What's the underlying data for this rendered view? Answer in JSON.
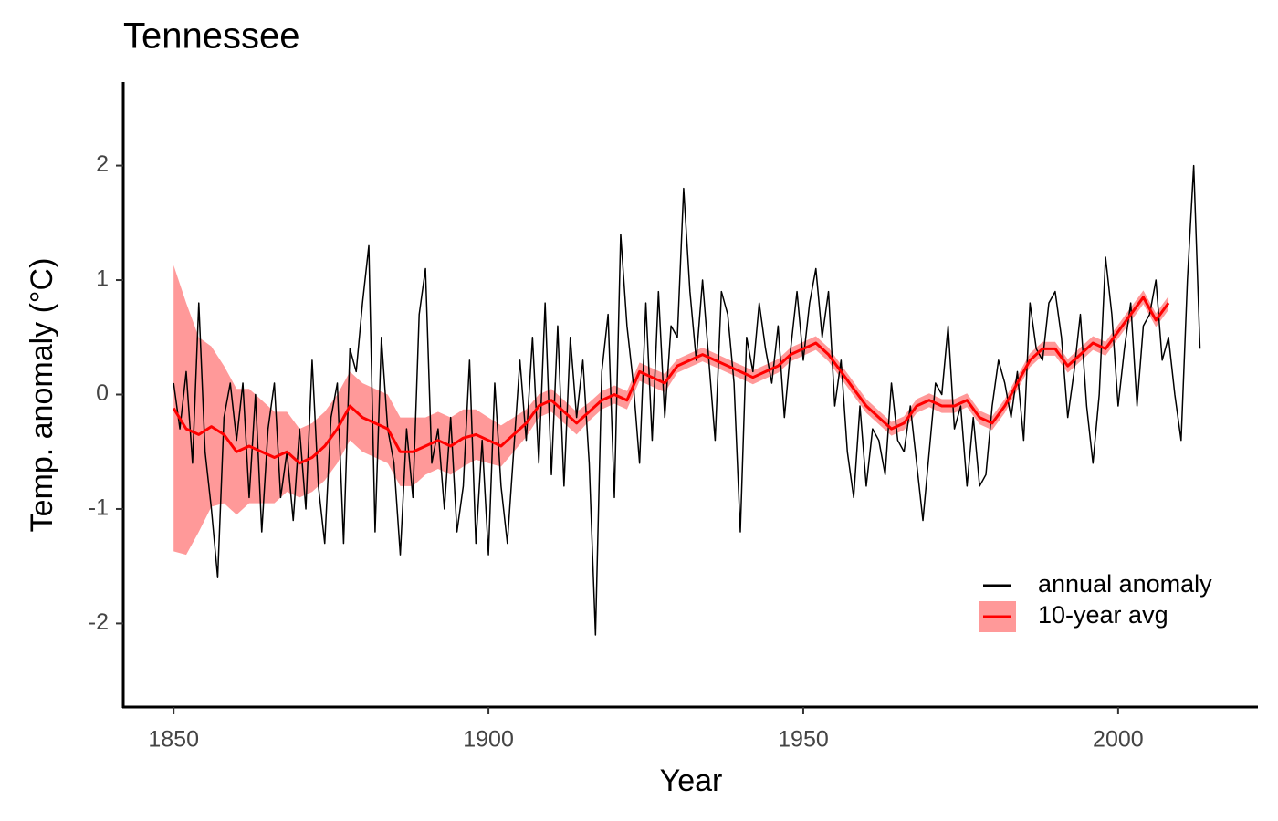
{
  "chart_data": {
    "type": "line",
    "title": "Tennessee",
    "x_label": "Year",
    "y_label": "Temp. anomaly (°C)",
    "xlim": [
      1842,
      2022.2
    ],
    "xticks": [
      1850,
      1900,
      1950,
      2000
    ],
    "ylim": [
      -2.73,
      2.73
    ],
    "yticks": [
      -2,
      -1,
      0,
      1,
      2
    ],
    "grid": false,
    "legend": "bottom-right",
    "series": [
      {
        "name": "annual anomaly",
        "color": "#000000",
        "x": [
          1850,
          1851,
          1852,
          1853,
          1854,
          1855,
          1856,
          1857,
          1858,
          1859,
          1860,
          1861,
          1862,
          1863,
          1864,
          1865,
          1866,
          1867,
          1868,
          1869,
          1870,
          1871,
          1872,
          1873,
          1874,
          1875,
          1876,
          1877,
          1878,
          1879,
          1880,
          1881,
          1882,
          1883,
          1884,
          1885,
          1886,
          1887,
          1888,
          1889,
          1890,
          1891,
          1892,
          1893,
          1894,
          1895,
          1896,
          1897,
          1898,
          1899,
          1900,
          1901,
          1902,
          1903,
          1904,
          1905,
          1906,
          1907,
          1908,
          1909,
          1910,
          1911,
          1912,
          1913,
          1914,
          1915,
          1916,
          1917,
          1918,
          1919,
          1920,
          1921,
          1922,
          1923,
          1924,
          1925,
          1926,
          1927,
          1928,
          1929,
          1930,
          1931,
          1932,
          1933,
          1934,
          1935,
          1936,
          1937,
          1938,
          1939,
          1940,
          1941,
          1942,
          1943,
          1944,
          1945,
          1946,
          1947,
          1948,
          1949,
          1950,
          1951,
          1952,
          1953,
          1954,
          1955,
          1956,
          1957,
          1958,
          1959,
          1960,
          1961,
          1962,
          1963,
          1964,
          1965,
          1966,
          1967,
          1968,
          1969,
          1970,
          1971,
          1972,
          1973,
          1974,
          1975,
          1976,
          1977,
          1978,
          1979,
          1980,
          1981,
          1982,
          1983,
          1984,
          1985,
          1986,
          1987,
          1988,
          1989,
          1990,
          1991,
          1992,
          1993,
          1994,
          1995,
          1996,
          1997,
          1998,
          1999,
          2000,
          2001,
          2002,
          2003,
          2004,
          2005,
          2006,
          2007,
          2008,
          2009,
          2010,
          2011,
          2012,
          2013
        ],
        "values": [
          0.1,
          -0.3,
          0.2,
          -0.6,
          0.8,
          -0.5,
          -1.0,
          -1.6,
          -0.2,
          0.1,
          -0.4,
          0.1,
          -0.9,
          0.0,
          -1.2,
          -0.3,
          0.1,
          -0.9,
          -0.5,
          -1.1,
          -0.3,
          -1.0,
          0.3,
          -0.8,
          -1.3,
          -0.2,
          0.1,
          -1.3,
          0.4,
          0.2,
          0.8,
          1.3,
          -1.2,
          0.5,
          -0.3,
          -0.6,
          -1.4,
          -0.3,
          -0.9,
          0.7,
          1.1,
          -0.6,
          -0.3,
          -1.0,
          -0.2,
          -1.2,
          -0.8,
          0.3,
          -1.3,
          -0.4,
          -1.4,
          0.1,
          -0.8,
          -1.3,
          -0.5,
          0.3,
          -0.4,
          0.5,
          -0.6,
          0.8,
          -0.7,
          0.6,
          -0.8,
          0.5,
          -0.2,
          0.3,
          -0.6,
          -2.1,
          0.2,
          0.7,
          -0.9,
          1.4,
          0.6,
          0.1,
          -0.6,
          0.8,
          -0.4,
          0.9,
          -0.2,
          0.6,
          0.5,
          1.8,
          0.9,
          0.3,
          1.0,
          0.3,
          -0.4,
          0.9,
          0.7,
          0.1,
          -1.2,
          0.5,
          0.2,
          0.8,
          0.4,
          0.1,
          0.6,
          -0.2,
          0.4,
          0.9,
          0.3,
          0.8,
          1.1,
          0.5,
          0.9,
          -0.1,
          0.3,
          -0.5,
          -0.9,
          -0.1,
          -0.8,
          -0.3,
          -0.4,
          -0.7,
          0.1,
          -0.4,
          -0.5,
          -0.1,
          -0.6,
          -1.1,
          -0.5,
          0.1,
          0.0,
          0.6,
          -0.3,
          -0.1,
          -0.8,
          -0.2,
          -0.8,
          -0.7,
          -0.1,
          0.3,
          0.1,
          -0.2,
          0.2,
          -0.4,
          0.8,
          0.4,
          0.3,
          0.8,
          0.9,
          0.5,
          -0.2,
          0.2,
          0.7,
          -0.1,
          -0.6,
          0.0,
          1.2,
          0.7,
          -0.1,
          0.4,
          0.8,
          -0.1,
          0.6,
          0.7,
          1.0,
          0.3,
          0.5,
          0.0,
          -0.4,
          1.0,
          2.0,
          0.4
        ]
      },
      {
        "name": "10-year avg",
        "color": "#ff0000",
        "band_color": "#ff9999",
        "x": [
          1850,
          1852,
          1854,
          1856,
          1858,
          1860,
          1862,
          1864,
          1866,
          1868,
          1870,
          1872,
          1874,
          1876,
          1878,
          1880,
          1882,
          1884,
          1886,
          1888,
          1890,
          1892,
          1894,
          1896,
          1898,
          1900,
          1902,
          1904,
          1906,
          1908,
          1910,
          1912,
          1914,
          1916,
          1918,
          1920,
          1922,
          1924,
          1926,
          1928,
          1930,
          1932,
          1934,
          1936,
          1938,
          1940,
          1942,
          1944,
          1946,
          1948,
          1950,
          1952,
          1954,
          1956,
          1958,
          1960,
          1962,
          1964,
          1966,
          1968,
          1970,
          1972,
          1974,
          1976,
          1978,
          1980,
          1982,
          1984,
          1986,
          1988,
          1990,
          1992,
          1994,
          1996,
          1998,
          2000,
          2002,
          2004,
          2006,
          2008
        ],
        "values": [
          -0.12,
          -0.3,
          -0.35,
          -0.28,
          -0.35,
          -0.5,
          -0.45,
          -0.5,
          -0.55,
          -0.5,
          -0.6,
          -0.55,
          -0.45,
          -0.3,
          -0.1,
          -0.2,
          -0.25,
          -0.3,
          -0.5,
          -0.5,
          -0.45,
          -0.4,
          -0.45,
          -0.38,
          -0.35,
          -0.4,
          -0.45,
          -0.35,
          -0.25,
          -0.1,
          -0.05,
          -0.15,
          -0.25,
          -0.15,
          -0.05,
          0.0,
          -0.05,
          0.2,
          0.15,
          0.1,
          0.25,
          0.3,
          0.35,
          0.3,
          0.25,
          0.2,
          0.15,
          0.2,
          0.25,
          0.35,
          0.4,
          0.45,
          0.35,
          0.2,
          0.05,
          -0.1,
          -0.2,
          -0.3,
          -0.25,
          -0.1,
          -0.05,
          -0.1,
          -0.1,
          -0.05,
          -0.2,
          -0.25,
          -0.1,
          0.1,
          0.3,
          0.4,
          0.4,
          0.25,
          0.35,
          0.45,
          0.4,
          0.55,
          0.7,
          0.85,
          0.65,
          0.8
        ],
        "errors": [
          1.25,
          1.1,
          0.85,
          0.7,
          0.6,
          0.55,
          0.5,
          0.45,
          0.4,
          0.35,
          0.3,
          0.3,
          0.3,
          0.3,
          0.3,
          0.3,
          0.3,
          0.3,
          0.3,
          0.3,
          0.25,
          0.25,
          0.25,
          0.25,
          0.22,
          0.2,
          0.18,
          0.15,
          0.12,
          0.1,
          0.1,
          0.1,
          0.1,
          0.08,
          0.08,
          0.08,
          0.08,
          0.08,
          0.08,
          0.08,
          0.06,
          0.06,
          0.06,
          0.06,
          0.06,
          0.06,
          0.06,
          0.06,
          0.06,
          0.06,
          0.06,
          0.06,
          0.06,
          0.06,
          0.06,
          0.06,
          0.06,
          0.06,
          0.06,
          0.06,
          0.06,
          0.06,
          0.06,
          0.06,
          0.06,
          0.06,
          0.06,
          0.06,
          0.06,
          0.06,
          0.06,
          0.06,
          0.06,
          0.06,
          0.06,
          0.06,
          0.06,
          0.06,
          0.06,
          0.06
        ]
      }
    ]
  }
}
